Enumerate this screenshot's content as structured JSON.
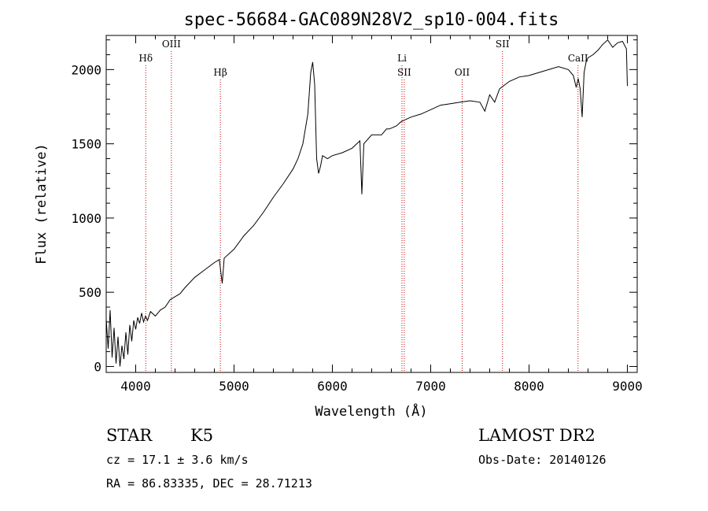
{
  "chart_data": {
    "type": "line",
    "title": "spec-56684-GAC089N28V2_sp10-004.fits",
    "xlabel": "Wavelength (Å)",
    "ylabel": "Flux (relative)",
    "xlim": [
      3700,
      9100
    ],
    "ylim": [
      -40,
      2230
    ],
    "xticks": [
      4000,
      5000,
      6000,
      7000,
      8000,
      9000
    ],
    "yticks": [
      0,
      500,
      1000,
      1500,
      2000
    ],
    "grid": false,
    "series": [
      {
        "x": [
          3700,
          3720,
          3740,
          3760,
          3780,
          3800,
          3820,
          3840,
          3860,
          3880,
          3900,
          3920,
          3940,
          3960,
          3980,
          4000,
          4020,
          4040,
          4060,
          4080,
          4100,
          4120,
          4150,
          4200,
          4250,
          4300,
          4350,
          4400,
          4450,
          4500,
          4600,
          4700,
          4800,
          4850,
          4880,
          4900,
          5000,
          5100,
          5200,
          5300,
          5400,
          5500,
          5600,
          5650,
          5700,
          5750,
          5780,
          5800,
          5820,
          5840,
          5860,
          5880,
          5900,
          5950,
          6000,
          6100,
          6200,
          6280,
          6300,
          6320,
          6400,
          6500,
          6550,
          6563,
          6580,
          6650,
          6700,
          6800,
          6900,
          7000,
          7100,
          7200,
          7300,
          7400,
          7500,
          7550,
          7600,
          7650,
          7700,
          7800,
          7900,
          8000,
          8100,
          8200,
          8300,
          8400,
          8450,
          8480,
          8500,
          8520,
          8540,
          8560,
          8580,
          8600,
          8650,
          8700,
          8750,
          8800,
          8850,
          8900,
          8950,
          8990,
          9000
        ],
        "y": [
          320,
          120,
          380,
          60,
          260,
          20,
          200,
          0,
          140,
          50,
          230,
          80,
          280,
          170,
          310,
          250,
          330,
          290,
          360,
          300,
          340,
          310,
          370,
          340,
          380,
          400,
          450,
          470,
          490,
          530,
          600,
          650,
          700,
          720,
          560,
          730,
          790,
          880,
          950,
          1040,
          1140,
          1230,
          1330,
          1400,
          1500,
          1700,
          1980,
          2050,
          1900,
          1400,
          1300,
          1350,
          1420,
          1400,
          1420,
          1440,
          1470,
          1520,
          1160,
          1500,
          1560,
          1560,
          1600,
          1600,
          1600,
          1620,
          1650,
          1680,
          1700,
          1730,
          1760,
          1770,
          1780,
          1790,
          1780,
          1720,
          1830,
          1780,
          1870,
          1920,
          1950,
          1960,
          1980,
          2000,
          2020,
          2000,
          1960,
          1880,
          1940,
          1870,
          1680,
          1980,
          2050,
          2080,
          2100,
          2130,
          2170,
          2200,
          2150,
          2180,
          2190,
          2140,
          1890
        ]
      }
    ],
    "vlines": [
      {
        "x": 4102,
        "label": "Hδ",
        "row": 1
      },
      {
        "x": 4363,
        "label": "OIII",
        "row": 0
      },
      {
        "x": 4861,
        "label": "Hβ",
        "row": 2
      },
      {
        "x": 6708,
        "label": "Li",
        "row": 1
      },
      {
        "x": 6731,
        "label": "SII",
        "row": 2
      },
      {
        "x": 7320,
        "label": "OII",
        "row": 2
      },
      {
        "x": 7730,
        "label": "SII",
        "row": 0
      },
      {
        "x": 8498,
        "label": "CaII",
        "row": 1
      }
    ],
    "vline_color": "#c00000"
  },
  "info": {
    "class_label": "STAR",
    "subclass_label": "K5",
    "survey_label": "LAMOST DR2",
    "cz_label": "cz = 17.1 ± 3.6 km/s",
    "obsdate_label": "Obs-Date: 20140126",
    "radec_label": "RA =  86.83335, DEC =  28.71213"
  }
}
